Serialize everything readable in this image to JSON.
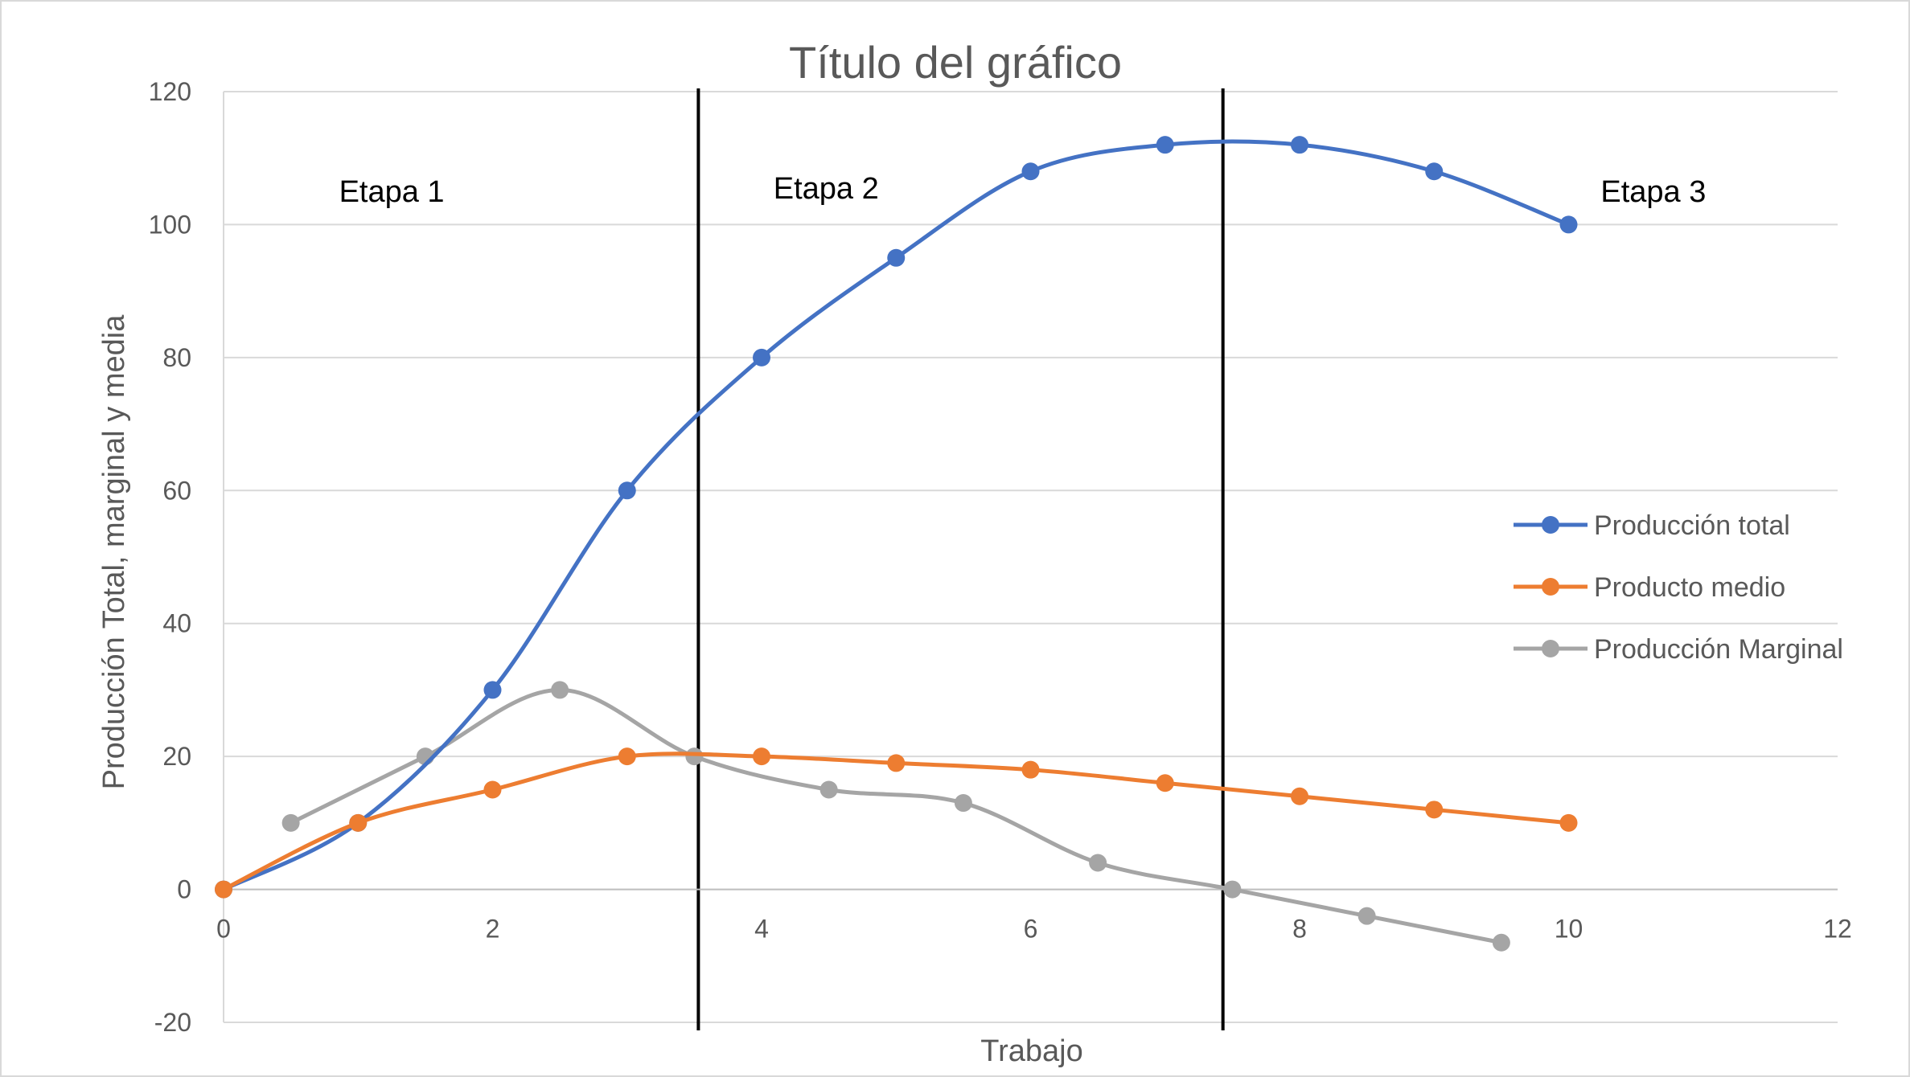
{
  "chart_data": {
    "type": "scatter",
    "title": "Título del gráfico",
    "xlabel": "Trabajo",
    "ylabel": "Producción Total, marginal y media",
    "xlim": [
      0,
      12
    ],
    "ylim": [
      -20,
      120
    ],
    "xticks": [
      0,
      2,
      4,
      6,
      8,
      10,
      12
    ],
    "yticks": [
      -20,
      0,
      20,
      40,
      60,
      80,
      100,
      120
    ],
    "grid": "horizontal",
    "smooth": true,
    "legend_position": "right",
    "series": [
      {
        "name": "Producción total",
        "color": "#4472c4",
        "points": [
          [
            0,
            0
          ],
          [
            1,
            10
          ],
          [
            2,
            30
          ],
          [
            3,
            60
          ],
          [
            4,
            80
          ],
          [
            5,
            95
          ],
          [
            6,
            108
          ],
          [
            7,
            112
          ],
          [
            8,
            112
          ],
          [
            9,
            108
          ],
          [
            10,
            100
          ]
        ]
      },
      {
        "name": "Producto medio",
        "color": "#ed7d31",
        "points": [
          [
            0,
            0
          ],
          [
            1,
            10
          ],
          [
            2,
            15
          ],
          [
            3,
            20
          ],
          [
            4,
            20
          ],
          [
            5,
            19
          ],
          [
            6,
            18
          ],
          [
            7,
            16
          ],
          [
            8,
            14
          ],
          [
            9,
            12
          ],
          [
            10,
            10
          ]
        ]
      },
      {
        "name": "Producción Marginal",
        "color": "#a5a5a5",
        "points": [
          [
            0.5,
            10
          ],
          [
            1.5,
            20
          ],
          [
            2.5,
            30
          ],
          [
            3.5,
            20
          ],
          [
            4.5,
            15
          ],
          [
            5.5,
            13
          ],
          [
            6.5,
            4
          ],
          [
            7.5,
            0
          ],
          [
            8.5,
            -4
          ],
          [
            9.5,
            -8
          ]
        ]
      }
    ],
    "vertical_lines": [
      {
        "x": 3.53,
        "color": "#000000"
      },
      {
        "x": 7.43,
        "color": "#000000"
      }
    ],
    "annotations": [
      {
        "text": "Etapa 1",
        "x": 1.25,
        "y": 105
      },
      {
        "text": "Etapa 2",
        "x": 4.48,
        "y": 105.5
      },
      {
        "text": "Etapa 3",
        "x": 10.63,
        "y": 105
      }
    ]
  }
}
